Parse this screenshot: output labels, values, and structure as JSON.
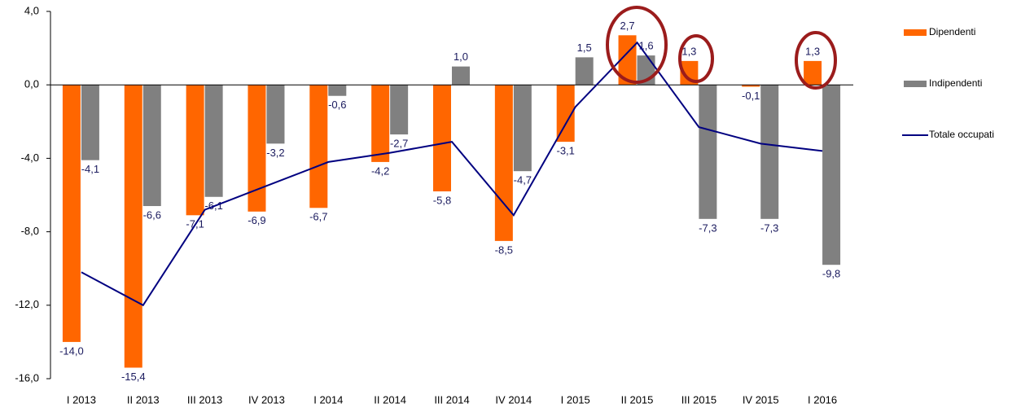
{
  "chart_data": {
    "type": "bar",
    "categories": [
      "I 2013",
      "II 2013",
      "III 2013",
      "IV 2013",
      "I 2014",
      "II 2014",
      "III 2014",
      "IV 2014",
      "I 2015",
      "II 2015",
      "III 2015",
      "IV 2015",
      "I 2016"
    ],
    "series": [
      {
        "name": "Dipendenti",
        "type": "bar",
        "color": "#ff6600",
        "values": [
          -14.0,
          -15.4,
          -7.1,
          -6.9,
          -6.7,
          -4.2,
          -5.8,
          -8.5,
          -3.1,
          2.7,
          1.3,
          -0.1,
          1.3
        ],
        "value_labels": [
          "-14,0",
          "-15,4",
          "-7,1",
          "-6,9",
          "-6,7",
          "-4,2",
          "-5,8",
          "-8,5",
          "-3,1",
          "2,7",
          "1,3",
          "-0,1",
          "1,3"
        ]
      },
      {
        "name": "Indipendenti",
        "type": "bar",
        "color": "#808080",
        "values": [
          -4.1,
          -6.6,
          -6.1,
          -3.2,
          -0.6,
          -2.7,
          1.0,
          -4.7,
          1.5,
          1.6,
          -7.3,
          -7.3,
          -9.8
        ],
        "value_labels": [
          "-4,1",
          "-6,6",
          "-6,1",
          "-3,2",
          "-0,6",
          "-2,7",
          "1,0",
          "-4,7",
          "1,5",
          "1,6",
          "-7,3",
          "-7,3",
          "-9,8"
        ]
      },
      {
        "name": "Totale occupati",
        "type": "line",
        "color": "#000080",
        "values": [
          -10.2,
          -12.0,
          -6.8,
          -5.5,
          -4.2,
          -3.7,
          -3.1,
          -7.1,
          -1.2,
          2.3,
          -2.3,
          -3.2,
          -3.6
        ]
      }
    ],
    "ylim": [
      -16,
      4
    ],
    "yticks": [
      {
        "value": -16,
        "label": "-16,0"
      },
      {
        "value": -12,
        "label": "-12,0"
      },
      {
        "value": -8,
        "label": "-8,0"
      },
      {
        "value": -4,
        "label": "-4,0"
      },
      {
        "value": 0,
        "label": "0,0"
      },
      {
        "value": 4,
        "label": "4,0"
      }
    ]
  }
}
